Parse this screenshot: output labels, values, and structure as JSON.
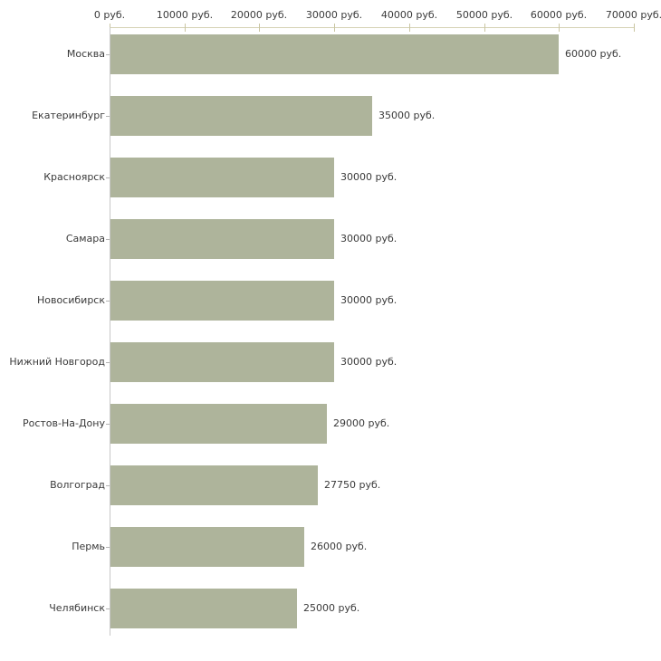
{
  "chart_data": {
    "type": "bar",
    "orientation": "horizontal",
    "title": "",
    "xlabel": "",
    "ylabel": "",
    "unit": "руб.",
    "categories": [
      "Москва",
      "Екатеринбург",
      "Красноярск",
      "Самара",
      "Новосибирск",
      "Нижний Новгород",
      "Ростов-На-Дону",
      "Волгоград",
      "Пермь",
      "Челябинск"
    ],
    "values": [
      60000,
      35000,
      30000,
      30000,
      30000,
      30000,
      29000,
      27750,
      26000,
      25000
    ],
    "value_labels": [
      "60000 руб.",
      "35000 руб.",
      "30000 руб.",
      "30000 руб.",
      "30000 руб.",
      "30000 руб.",
      "29000 руб.",
      "27750 руб.",
      "26000 руб.",
      "25000 руб."
    ],
    "x_tick_values": [
      0,
      10000,
      20000,
      30000,
      40000,
      50000,
      60000,
      70000
    ],
    "x_tick_labels": [
      "0 руб.",
      "10000 руб.",
      "20000 руб.",
      "30000 руб.",
      "40000 руб.",
      "50000 руб.",
      "60000 руб.",
      "70000 руб."
    ],
    "xlim": [
      0,
      70000
    ],
    "grid": false,
    "legend": "none",
    "axis_position": "top"
  },
  "colors": {
    "bar_fill": "#aeb49b",
    "x_axis_line": "#d6d2b4",
    "x_axis_tick": "#c9c5a2",
    "y_axis_line": "#c8c8c8",
    "y_axis_tick": "#b4b4b4",
    "text": "#3a3a3a",
    "background": "#ffffff"
  }
}
